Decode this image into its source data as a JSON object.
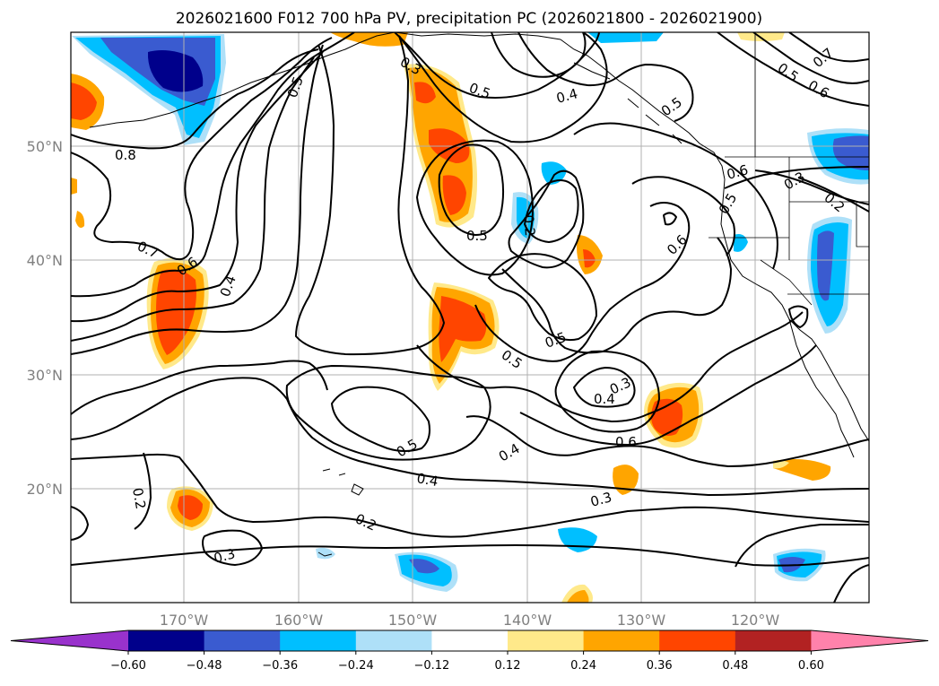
{
  "title": "2026021600 F012 700 hPa PV, precipitation PC (2026021800 - 2026021900)",
  "map": {
    "lon_range": [
      -180,
      -110
    ],
    "lat_range": [
      10,
      60
    ],
    "lat_labels": [
      "50°N",
      "40°N",
      "30°N",
      "20°N"
    ],
    "lon_labels": [
      "170°W",
      "160°W",
      "150°W",
      "140°W",
      "130°W",
      "120°W"
    ],
    "contour_labels": [
      "0.8",
      "0.7",
      "0.6",
      "0.4",
      "0.5",
      "0.3",
      "0.5",
      "0.4",
      "0.5",
      "0.2",
      "0.5",
      "0.6",
      "0.5",
      "0.6",
      "0.5",
      "0.3",
      "0.2",
      "0.7",
      "0.6",
      "0.5",
      "0.5",
      "0.3",
      "0.4",
      "0.6",
      "0.5",
      "0.4",
      "0.4",
      "0.3",
      "0.2",
      "0.3",
      "0.2"
    ]
  },
  "colorbar": {
    "ticks": [
      "−0.60",
      "−0.48",
      "−0.36",
      "−0.24",
      "−0.12",
      "0.12",
      "0.24",
      "0.36",
      "0.48",
      "0.60"
    ],
    "colors": [
      "#9932cc",
      "#00008b",
      "#3a5bd0",
      "#00bfff",
      "#aee0f8",
      "#ffffff",
      "#ffe98a",
      "#ffa500",
      "#ff4500",
      "#b22222",
      "#ff82ab"
    ]
  }
}
